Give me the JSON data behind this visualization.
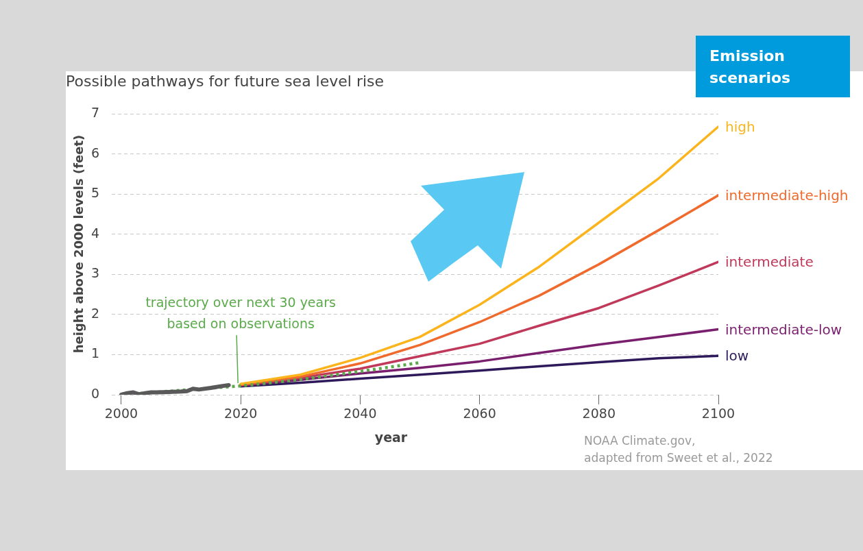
{
  "chart_data": {
    "type": "line",
    "title": "Possible pathways for future sea level rise",
    "xlabel": "year",
    "ylabel": "height above 2000 levels (feet)",
    "legend_title": "Emission scenarios",
    "xlim": [
      1998.4,
      2100
    ],
    "xticks": [
      2000,
      2020,
      2040,
      2060,
      2080,
      2100
    ],
    "ylim": [
      0,
      7
    ],
    "yticks": [
      0,
      1,
      2,
      3,
      4,
      5,
      6,
      7
    ],
    "grid": "y",
    "legend": false,
    "marker": "none",
    "series": [
      {
        "name": "high",
        "color": "#fbb41c",
        "x": [
          2020,
          2030,
          2040,
          2050,
          2060,
          2070,
          2080,
          2090,
          2100
        ],
        "values": [
          0.27,
          0.5,
          0.92,
          1.44,
          2.24,
          3.19,
          4.29,
          5.39,
          6.68
        ]
      },
      {
        "name": "intermediate-high",
        "color": "#ef6a2c",
        "x": [
          2020,
          2030,
          2040,
          2050,
          2060,
          2070,
          2080,
          2090,
          2100
        ],
        "values": [
          0.25,
          0.45,
          0.78,
          1.24,
          1.81,
          2.47,
          3.25,
          4.1,
          4.97
        ]
      },
      {
        "name": "intermediate",
        "color": "#c0395b",
        "x": [
          2020,
          2030,
          2040,
          2050,
          2060,
          2070,
          2080,
          2090,
          2100
        ],
        "values": [
          0.24,
          0.42,
          0.65,
          0.96,
          1.27,
          1.72,
          2.16,
          2.72,
          3.31
        ]
      },
      {
        "name": "intermediate-low",
        "color": "#7a1f6e",
        "x": [
          2020,
          2030,
          2040,
          2050,
          2060,
          2070,
          2080,
          2090,
          2100
        ],
        "values": [
          0.23,
          0.37,
          0.53,
          0.67,
          0.83,
          1.04,
          1.25,
          1.44,
          1.63
        ]
      },
      {
        "name": "low",
        "color": "#2e1a5b",
        "x": [
          2020,
          2030,
          2040,
          2050,
          2060,
          2070,
          2080,
          2090,
          2100
        ],
        "values": [
          0.21,
          0.3,
          0.4,
          0.5,
          0.6,
          0.71,
          0.81,
          0.91,
          0.97
        ]
      },
      {
        "color": "#595959",
        "x": [
          2000,
          2001,
          2002,
          2003,
          2004,
          2005,
          2006,
          2008,
          2010,
          2011,
          2012,
          2013,
          2015,
          2017,
          2018
        ],
        "values": [
          0,
          0.04,
          0.06,
          0.01,
          0.04,
          0.06,
          0.06,
          0.07,
          0.08,
          0.09,
          0.15,
          0.13,
          0.17,
          0.22,
          0.24
        ]
      },
      {
        "color": "#5aaa4a",
        "line_style": "dotted",
        "x": [
          2000,
          2020,
          2030,
          2040,
          2050
        ],
        "values": [
          0,
          0.22,
          0.38,
          0.58,
          0.8
        ]
      }
    ],
    "annotations": [
      {
        "text": "trajectory over next 30 years based on observations",
        "x": 2020,
        "y": 0.22
      },
      "NOAA Climate.gov, adapted from Sweet et al., 2022"
    ]
  }
}
